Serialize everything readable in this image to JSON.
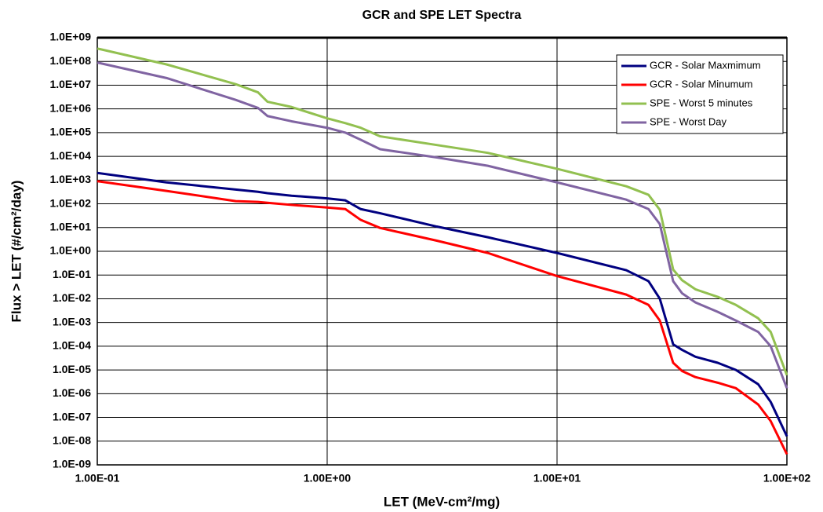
{
  "chart_data": {
    "type": "line",
    "title": "GCR and SPE LET Spectra",
    "xlabel": "LET (MeV-cm²/mg)",
    "ylabel": "Flux > LET (#/cm²/day)",
    "xscale": "log",
    "yscale": "log",
    "grid": true,
    "legend": "upper right",
    "xlim": [
      0.1,
      100
    ],
    "ylim": [
      1e-09,
      1000000000.0
    ],
    "xticks": [
      {
        "value": 0.1,
        "label": "1.00E-01"
      },
      {
        "value": 1,
        "label": "1.00E+00"
      },
      {
        "value": 10,
        "label": "1.00E+01"
      },
      {
        "value": 100,
        "label": "1.00E+02"
      }
    ],
    "yticks": [
      {
        "value": 1e-09,
        "label": "1.0E-09"
      },
      {
        "value": 1e-08,
        "label": "1.0E-08"
      },
      {
        "value": 1e-07,
        "label": "1.0E-07"
      },
      {
        "value": 1e-06,
        "label": "1.0E-06"
      },
      {
        "value": 1e-05,
        "label": "1.0E-05"
      },
      {
        "value": 0.0001,
        "label": "1.0E-04"
      },
      {
        "value": 0.001,
        "label": "1.0E-03"
      },
      {
        "value": 0.01,
        "label": "1.0E-02"
      },
      {
        "value": 0.1,
        "label": "1.0E-01"
      },
      {
        "value": 1,
        "label": "1.0E+00"
      },
      {
        "value": 10,
        "label": "1.0E+01"
      },
      {
        "value": 100,
        "label": "1.0E+02"
      },
      {
        "value": 1000,
        "label": "1.0E+03"
      },
      {
        "value": 10000.0,
        "label": "1.0E+04"
      },
      {
        "value": 100000.0,
        "label": "1.0E+05"
      },
      {
        "value": 1000000.0,
        "label": "1.0E+06"
      },
      {
        "value": 10000000.0,
        "label": "1.0E+07"
      },
      {
        "value": 100000000.0,
        "label": "1.0E+08"
      },
      {
        "value": 1000000000.0,
        "label": "1.0E+09"
      }
    ],
    "x": [
      0.1,
      0.2,
      0.4,
      0.5,
      0.55,
      0.7,
      1,
      1.2,
      1.4,
      1.7,
      3,
      5,
      10,
      20,
      25,
      28,
      32,
      35,
      40,
      50,
      60,
      75,
      85,
      100
    ],
    "series": [
      {
        "name": "GCR - Solar Maxmimum",
        "color": "#000080",
        "values": [
          2000.0,
          800.0,
          400.0,
          320.0,
          280.0,
          220.0,
          170.0,
          140.0,
          60.0,
          40.0,
          11.0,
          3.9,
          0.85,
          0.16,
          0.055,
          0.01,
          0.00012,
          7e-05,
          3.6e-05,
          2e-05,
          1e-05,
          2.5e-06,
          4.5e-07,
          1.6e-08
        ]
      },
      {
        "name": "GCR - Solar Minumum",
        "color": "#ff0000",
        "values": [
          900.0,
          350.0,
          130.0,
          120.0,
          110.0,
          90.0,
          70.0,
          60.0,
          21.0,
          9.6,
          2.8,
          0.85,
          0.09,
          0.015,
          0.0055,
          0.0012,
          2e-05,
          9e-06,
          5e-06,
          2.9e-06,
          1.7e-06,
          3.5e-07,
          7e-08,
          2.8e-09
        ]
      },
      {
        "name": "SPE - Worst 5 minutes",
        "color": "#92c050",
        "values": [
          350000000.0,
          75000000.0,
          11000000.0,
          5000000.0,
          2000000.0,
          1200000.0,
          400000.0,
          250000.0,
          160000.0,
          70000.0,
          30000.0,
          14000.0,
          3000.0,
          550.0,
          240.0,
          56.0,
          0.17,
          0.06,
          0.025,
          0.012,
          0.0055,
          0.0015,
          0.0004,
          6e-06
        ]
      },
      {
        "name": "SPE - Worst Day",
        "color": "#8064a2",
        "values": [
          90000000.0,
          20000000.0,
          2400000.0,
          1100000.0,
          500000.0,
          300000.0,
          160000.0,
          100000.0,
          50000.0,
          20000.0,
          9000.0,
          4000.0,
          800.0,
          150.0,
          60.0,
          14.0,
          0.055,
          0.017,
          0.007,
          0.0028,
          0.0012,
          0.0004,
          0.0001,
          1.7e-06
        ]
      }
    ]
  }
}
